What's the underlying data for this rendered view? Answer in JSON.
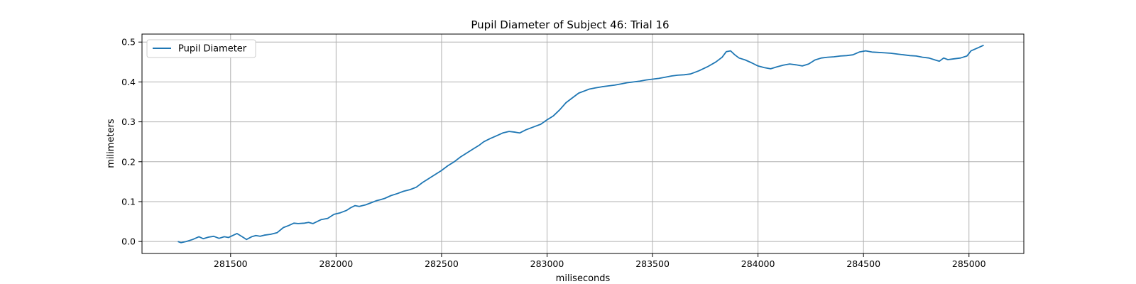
{
  "chart_data": {
    "type": "line",
    "title": "Pupil Diameter of Subject 46: Trial 16",
    "xlabel": "miliseconds",
    "ylabel": "milimeters",
    "xlim": [
      281080,
      285260
    ],
    "ylim": [
      -0.03,
      0.52
    ],
    "xticks": [
      281500,
      282000,
      282500,
      283000,
      283500,
      284000,
      284500,
      285000
    ],
    "yticks": [
      0.0,
      0.1,
      0.2,
      0.3,
      0.4,
      0.5
    ],
    "ytick_labels": [
      "0.0",
      "0.1",
      "0.2",
      "0.3",
      "0.4",
      "0.5"
    ],
    "grid": true,
    "legend": {
      "position": "top-left",
      "entries": [
        "Pupil Diameter"
      ]
    },
    "series": [
      {
        "name": "Pupil Diameter",
        "color": "#1f77b4",
        "x": [
          281250,
          281265,
          281290,
          281320,
          281350,
          281370,
          281395,
          281420,
          281445,
          281470,
          281490,
          281510,
          281530,
          281555,
          281575,
          281600,
          281620,
          281640,
          281660,
          281690,
          281720,
          281750,
          281775,
          281800,
          281820,
          281850,
          281870,
          281890,
          281910,
          281930,
          281960,
          281990,
          282020,
          282050,
          282070,
          282090,
          282110,
          282140,
          282170,
          282190,
          282210,
          282230,
          282260,
          282290,
          282320,
          282350,
          282380,
          282410,
          282440,
          282470,
          282500,
          282530,
          282560,
          282590,
          282620,
          282650,
          282680,
          282700,
          282730,
          282760,
          282790,
          282820,
          282850,
          282870,
          282900,
          282940,
          282970,
          283000,
          283030,
          283060,
          283090,
          283120,
          283150,
          283180,
          283200,
          283230,
          283260,
          283290,
          283320,
          283350,
          283380,
          283410,
          283440,
          283470,
          283500,
          283530,
          283560,
          283590,
          283620,
          283650,
          283680,
          283720,
          283760,
          283800,
          283830,
          283850,
          283870,
          283890,
          283910,
          283940,
          283970,
          284000,
          284030,
          284060,
          284090,
          284120,
          284150,
          284180,
          284210,
          284240,
          284270,
          284300,
          284330,
          284360,
          284390,
          284420,
          284450,
          284480,
          284510,
          284540,
          284570,
          284600,
          284630,
          284660,
          284690,
          284720,
          284750,
          284780,
          284810,
          284840,
          284860,
          284880,
          284900,
          284930,
          284960,
          284990,
          285010,
          285040,
          285070
        ],
        "y": [
          0.0,
          -0.003,
          0.0,
          0.005,
          0.012,
          0.007,
          0.011,
          0.013,
          0.008,
          0.012,
          0.01,
          0.015,
          0.02,
          0.012,
          0.005,
          0.012,
          0.015,
          0.013,
          0.016,
          0.018,
          0.022,
          0.035,
          0.04,
          0.046,
          0.045,
          0.046,
          0.048,
          0.045,
          0.05,
          0.055,
          0.058,
          0.068,
          0.072,
          0.078,
          0.085,
          0.09,
          0.088,
          0.092,
          0.098,
          0.102,
          0.105,
          0.108,
          0.115,
          0.12,
          0.126,
          0.13,
          0.136,
          0.148,
          0.158,
          0.168,
          0.178,
          0.19,
          0.2,
          0.212,
          0.222,
          0.232,
          0.242,
          0.25,
          0.258,
          0.265,
          0.272,
          0.276,
          0.274,
          0.272,
          0.28,
          0.288,
          0.294,
          0.305,
          0.315,
          0.33,
          0.348,
          0.36,
          0.372,
          0.378,
          0.382,
          0.385,
          0.388,
          0.39,
          0.392,
          0.395,
          0.398,
          0.4,
          0.402,
          0.405,
          0.407,
          0.409,
          0.412,
          0.415,
          0.417,
          0.418,
          0.42,
          0.428,
          0.438,
          0.45,
          0.462,
          0.476,
          0.478,
          0.468,
          0.46,
          0.455,
          0.448,
          0.44,
          0.436,
          0.433,
          0.438,
          0.442,
          0.445,
          0.443,
          0.44,
          0.445,
          0.455,
          0.46,
          0.462,
          0.463,
          0.465,
          0.466,
          0.468,
          0.475,
          0.478,
          0.475,
          0.474,
          0.473,
          0.472,
          0.47,
          0.468,
          0.466,
          0.465,
          0.462,
          0.46,
          0.455,
          0.452,
          0.46,
          0.456,
          0.458,
          0.46,
          0.465,
          0.478,
          0.485,
          0.492
        ]
      }
    ]
  }
}
